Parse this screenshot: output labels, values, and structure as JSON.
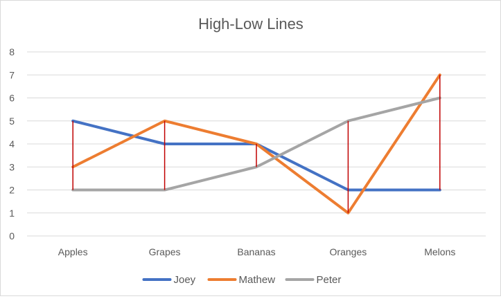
{
  "chart_data": {
    "type": "line",
    "title": "High-Low Lines",
    "categories": [
      "Apples",
      "Grapes",
      "Bananas",
      "Oranges",
      "Melons"
    ],
    "series": [
      {
        "name": "Joey",
        "values": [
          5,
          4,
          4,
          2,
          2
        ],
        "color": "#4472c4"
      },
      {
        "name": "Mathew",
        "values": [
          3,
          5,
          4,
          1,
          7
        ],
        "color": "#ed7d31"
      },
      {
        "name": "Peter",
        "values": [
          2,
          2,
          3,
          5,
          6
        ],
        "color": "#a5a5a5"
      }
    ],
    "ylim": [
      0,
      8
    ],
    "yticks": [
      0,
      1,
      2,
      3,
      4,
      5,
      6,
      7,
      8
    ],
    "grid": true,
    "legend_position": "bottom",
    "high_low_lines": true,
    "high_low_color": "#c00000"
  }
}
